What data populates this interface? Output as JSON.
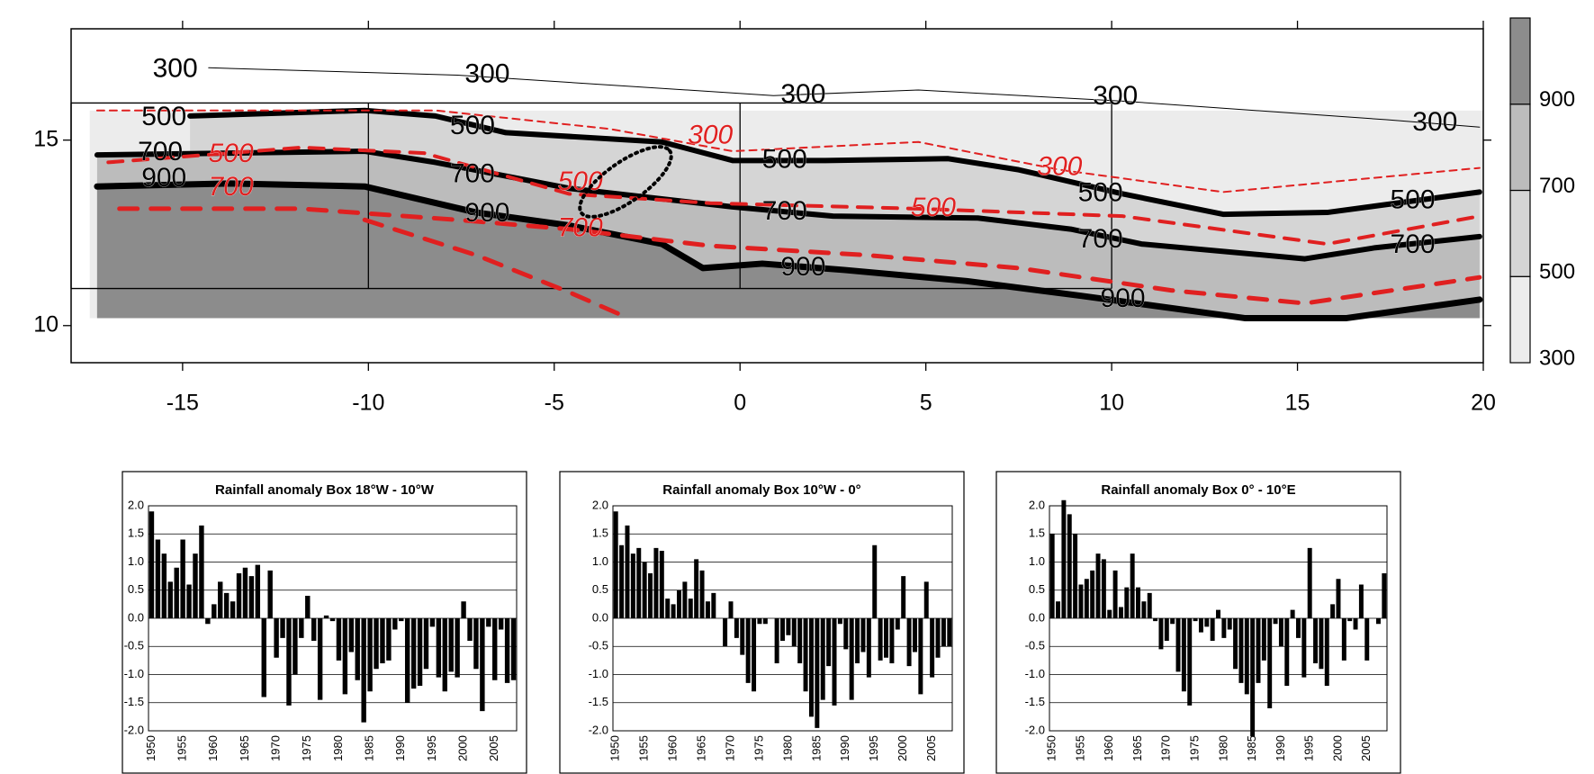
{
  "chart_data": [
    {
      "type": "contour-map",
      "xlim": [
        -18,
        20
      ],
      "ylim": [
        9,
        18
      ],
      "xticks": [
        -15,
        -10,
        -5,
        0,
        5,
        10,
        15,
        20
      ],
      "yticks": [
        10,
        15
      ],
      "boxes_lon": [
        -18,
        -10,
        0,
        10
      ],
      "box_lat": [
        11,
        16
      ],
      "colorbar": {
        "clim": [
          300,
          1100
        ],
        "ticks": [
          300,
          500,
          700,
          900
        ],
        "colors": [
          "#ececec",
          "#d5d5d5",
          "#bcbcbc",
          "#8c8c8c"
        ]
      },
      "shading": {
        "xlim": [
          -17.5,
          20
        ],
        "ylim": [
          10.2,
          15.8
        ]
      },
      "contours": [
        {
          "color": "#000000",
          "style": "solid",
          "width": 1,
          "x": [
            -14.3,
            -7.6,
            0.9,
            4.8,
            10.3,
            17.4,
            19.9
          ],
          "y": [
            16.95,
            16.75,
            16.2,
            16.35,
            16.05,
            15.55,
            15.35
          ]
        },
        {
          "color": "#000000",
          "style": "solid",
          "width": 6,
          "x": [
            -14.8,
            -10.1,
            -8.2,
            -6.3,
            -2.1,
            -0.2,
            2.3,
            5.6,
            7.5,
            10.3,
            13.0,
            15.8,
            19.9
          ],
          "y": [
            15.65,
            15.8,
            15.65,
            15.2,
            14.95,
            14.45,
            14.45,
            14.5,
            14.2,
            13.55,
            13.0,
            13.05,
            13.6
          ]
        },
        {
          "color": "#000000",
          "style": "solid",
          "width": 6,
          "x": [
            -17.3,
            -10.1,
            -8.2,
            -4.6,
            -0.2,
            2.5,
            6.4,
            8.9,
            10.8,
            15.2,
            17.1,
            19.9
          ],
          "y": [
            14.6,
            14.7,
            14.4,
            13.7,
            13.2,
            12.95,
            12.9,
            12.6,
            12.2,
            11.8,
            12.1,
            12.4
          ]
        },
        {
          "color": "#000000",
          "style": "solid",
          "width": 7,
          "x": [
            -17.3,
            -13.7,
            -10.1,
            -7.1,
            -4.6,
            -2.1,
            -1.0,
            0.6,
            2.8,
            6.1,
            9.2,
            13.6,
            16.3,
            19.9
          ],
          "y": [
            13.75,
            13.83,
            13.75,
            13.05,
            12.7,
            12.2,
            11.55,
            11.67,
            11.5,
            11.2,
            10.8,
            10.2,
            10.2,
            10.7
          ]
        },
        {
          "color": "#e02020",
          "style": "dashed",
          "width": 2,
          "x": [
            -17.3,
            -8.2,
            -3.5,
            -0.2,
            4.8,
            8.6,
            13.0,
            19.9
          ],
          "y": [
            15.8,
            15.8,
            15.3,
            14.7,
            14.95,
            14.2,
            13.6,
            14.25
          ]
        },
        {
          "color": "#e02020",
          "style": "dashed",
          "width": 4,
          "x": [
            -17.0,
            -11.8,
            -8.5,
            -4.6,
            -0.8,
            4.8,
            10.3,
            15.8,
            19.9
          ],
          "y": [
            14.4,
            14.8,
            14.65,
            13.55,
            13.3,
            13.15,
            12.95,
            12.2,
            12.95
          ]
        },
        {
          "color": "#e02020",
          "style": "dashed",
          "width": 5,
          "x": [
            -16.7,
            -11.8,
            -7.6,
            -4.6,
            -0.8,
            3.4,
            7.5,
            11.6,
            15.2,
            19.9
          ],
          "y": [
            13.15,
            13.15,
            12.85,
            12.6,
            12.15,
            11.9,
            11.55,
            10.95,
            10.6,
            11.3
          ]
        },
        {
          "color": "#e02020",
          "style": "dashed",
          "width": 5,
          "x": [
            -10.1,
            -7.1,
            -4.6,
            -3.0
          ],
          "y": [
            12.85,
            11.9,
            10.9,
            10.2
          ]
        }
      ],
      "annotations": [
        {
          "text": "300",
          "x": -15.2,
          "y": 16.9,
          "color": "#000000"
        },
        {
          "text": "300",
          "x": -6.8,
          "y": 16.75,
          "color": "#000000"
        },
        {
          "text": "300",
          "x": 1.7,
          "y": 16.2,
          "color": "#000000"
        },
        {
          "text": "300",
          "x": 10.1,
          "y": 16.15,
          "color": "#000000"
        },
        {
          "text": "300",
          "x": 18.7,
          "y": 15.45,
          "color": "#000000"
        },
        {
          "text": "500",
          "x": -15.5,
          "y": 15.6,
          "color": "#000000"
        },
        {
          "text": "500",
          "x": -7.2,
          "y": 15.35,
          "color": "#000000"
        },
        {
          "text": "500",
          "x": 1.2,
          "y": 14.45,
          "color": "#000000"
        },
        {
          "text": "500",
          "x": 9.7,
          "y": 13.55,
          "color": "#000000"
        },
        {
          "text": "500",
          "x": 18.1,
          "y": 13.35,
          "color": "#000000"
        },
        {
          "text": "700",
          "x": -15.6,
          "y": 14.65,
          "color": "#000000"
        },
        {
          "text": "700",
          "x": -7.2,
          "y": 14.05,
          "color": "#000000"
        },
        {
          "text": "700",
          "x": 1.2,
          "y": 13.05,
          "color": "#000000"
        },
        {
          "text": "700",
          "x": 9.7,
          "y": 12.3,
          "color": "#000000"
        },
        {
          "text": "700",
          "x": 18.1,
          "y": 12.15,
          "color": "#000000"
        },
        {
          "text": "900",
          "x": -15.5,
          "y": 13.95,
          "color": "#000000"
        },
        {
          "text": "900",
          "x": -6.8,
          "y": 13.0,
          "color": "#000000"
        },
        {
          "text": "900",
          "x": 1.7,
          "y": 11.55,
          "color": "#000000"
        },
        {
          "text": "900",
          "x": 10.3,
          "y": 10.7,
          "color": "#000000"
        },
        {
          "text": "500",
          "x": -13.7,
          "y": 14.6,
          "color": "#e02020"
        },
        {
          "text": "700",
          "x": -13.7,
          "y": 13.7,
          "color": "#e02020"
        },
        {
          "text": "300",
          "x": -0.8,
          "y": 15.1,
          "color": "#e02020"
        },
        {
          "text": "500",
          "x": -4.3,
          "y": 13.85,
          "color": "#e02020"
        },
        {
          "text": "700",
          "x": -4.3,
          "y": 12.6,
          "color": "#e02020"
        },
        {
          "text": "300",
          "x": 8.6,
          "y": 14.25,
          "color": "#e02020"
        },
        {
          "text": "500",
          "x": 5.2,
          "y": 13.15,
          "color": "#e02020"
        }
      ]
    },
    {
      "type": "bar",
      "title": "Rainfall anomaly Box 18°W - 10°W",
      "color": "#000000",
      "grid": true,
      "x": [
        1950,
        1951,
        1952,
        1953,
        1954,
        1955,
        1956,
        1957,
        1958,
        1959,
        1960,
        1961,
        1962,
        1963,
        1964,
        1965,
        1966,
        1967,
        1968,
        1969,
        1970,
        1971,
        1972,
        1973,
        1974,
        1975,
        1976,
        1977,
        1978,
        1979,
        1980,
        1981,
        1982,
        1983,
        1984,
        1985,
        1986,
        1987,
        1988,
        1989,
        1990,
        1991,
        1992,
        1993,
        1994,
        1995,
        1996,
        1997,
        1998,
        1999,
        2000,
        2001,
        2002,
        2003,
        2004,
        2005,
        2006,
        2007,
        2008
      ],
      "values": [
        1.9,
        1.4,
        1.15,
        0.65,
        0.9,
        1.4,
        0.6,
        1.15,
        1.65,
        -0.1,
        0.25,
        0.65,
        0.45,
        0.3,
        0.8,
        0.9,
        0.75,
        0.95,
        -1.4,
        0.85,
        -0.7,
        -0.35,
        -1.55,
        -1.0,
        -0.35,
        0.4,
        -0.4,
        -1.45,
        0.05,
        -0.05,
        -0.75,
        -1.35,
        -0.6,
        -1.1,
        -1.85,
        -1.3,
        -0.9,
        -0.8,
        -0.75,
        -0.2,
        -0.05,
        -1.5,
        -1.25,
        -1.2,
        -0.9,
        -0.15,
        -1.05,
        -1.3,
        -0.95,
        -1.05,
        0.3,
        -0.4,
        -0.9,
        -1.65,
        -0.15,
        -1.1,
        -0.2,
        -1.15,
        -1.1
      ],
      "xlim": [
        1949.5,
        2008.5
      ],
      "xticks": [
        1950,
        1955,
        1960,
        1965,
        1970,
        1975,
        1980,
        1985,
        1990,
        1995,
        2000,
        2005
      ],
      "ylim": [
        -2,
        2
      ],
      "yticks": [
        {
          "value": 2,
          "label": "2.0"
        },
        1.5,
        {
          "value": 1,
          "label": "1.0"
        },
        0.5,
        {
          "value": 0,
          "label": "0.0"
        },
        -0.5,
        {
          "value": -1,
          "label": "-1.0"
        },
        -1.5,
        {
          "value": -2,
          "label": "-2.0"
        }
      ]
    },
    {
      "type": "bar",
      "title": "Rainfall anomaly Box 10°W - 0°",
      "color": "#000000",
      "grid": true,
      "x": [
        1950,
        1951,
        1952,
        1953,
        1954,
        1955,
        1956,
        1957,
        1958,
        1959,
        1960,
        1961,
        1962,
        1963,
        1964,
        1965,
        1966,
        1967,
        1968,
        1969,
        1970,
        1971,
        1972,
        1973,
        1974,
        1975,
        1976,
        1977,
        1978,
        1979,
        1980,
        1981,
        1982,
        1983,
        1984,
        1985,
        1986,
        1987,
        1988,
        1989,
        1990,
        1991,
        1992,
        1993,
        1994,
        1995,
        1996,
        1997,
        1998,
        1999,
        2000,
        2001,
        2002,
        2003,
        2004,
        2005,
        2006,
        2007,
        2008
      ],
      "values": [
        1.9,
        1.3,
        1.65,
        1.15,
        1.25,
        1.0,
        0.8,
        1.25,
        1.2,
        0.35,
        0.25,
        0.5,
        0.65,
        0.35,
        1.05,
        0.85,
        0.3,
        0.45,
        0.0,
        -0.5,
        0.3,
        -0.35,
        -0.65,
        -1.15,
        -1.3,
        -0.1,
        -0.1,
        0.0,
        -0.8,
        -0.4,
        -0.3,
        -0.5,
        -0.8,
        -1.3,
        -1.75,
        -1.95,
        -1.45,
        -0.85,
        -1.55,
        -0.1,
        -0.55,
        -1.45,
        -0.8,
        -0.6,
        -1.05,
        1.3,
        -0.75,
        -0.7,
        -0.8,
        -0.2,
        0.75,
        -0.85,
        -0.6,
        -1.35,
        0.65,
        -1.05,
        -0.7,
        -0.5,
        -0.5
      ],
      "xlim": [
        1949.5,
        2008.5
      ],
      "xticks": [
        1950,
        1955,
        1960,
        1965,
        1970,
        1975,
        1980,
        1985,
        1990,
        1995,
        2000,
        2005
      ],
      "ylim": [
        -2,
        2
      ],
      "yticks": [
        {
          "value": 2,
          "label": "2.0"
        },
        1.5,
        {
          "value": 1,
          "label": "1.0"
        },
        0.5,
        {
          "value": 0,
          "label": "0.0"
        },
        -0.5,
        {
          "value": -1,
          "label": "-1.0"
        },
        -1.5,
        {
          "value": -2,
          "label": "-2.0"
        }
      ]
    },
    {
      "type": "bar",
      "title": "Rainfall anomaly Box 0° - 10°E",
      "color": "#000000",
      "grid": true,
      "x": [
        1950,
        1951,
        1952,
        1953,
        1954,
        1955,
        1956,
        1957,
        1958,
        1959,
        1960,
        1961,
        1962,
        1963,
        1964,
        1965,
        1966,
        1967,
        1968,
        1969,
        1970,
        1971,
        1972,
        1973,
        1974,
        1975,
        1976,
        1977,
        1978,
        1979,
        1980,
        1981,
        1982,
        1983,
        1984,
        1985,
        1986,
        1987,
        1988,
        1989,
        1990,
        1991,
        1992,
        1993,
        1994,
        1995,
        1996,
        1997,
        1998,
        1999,
        2000,
        2001,
        2002,
        2003,
        2004,
        2005,
        2006,
        2007,
        2008
      ],
      "values": [
        1.5,
        0.3,
        2.1,
        1.85,
        1.5,
        0.6,
        0.7,
        0.85,
        1.15,
        1.05,
        0.15,
        0.85,
        0.2,
        0.55,
        1.15,
        0.55,
        0.3,
        0.45,
        -0.05,
        -0.55,
        -0.4,
        -0.1,
        -0.95,
        -1.3,
        -1.55,
        -0.05,
        -0.25,
        -0.15,
        -0.4,
        0.15,
        -0.35,
        -0.2,
        -0.9,
        -1.15,
        -1.35,
        -2.1,
        -1.15,
        -0.75,
        -1.6,
        -0.1,
        -0.5,
        -1.2,
        0.15,
        -0.35,
        -1.05,
        1.25,
        -0.8,
        -0.9,
        -1.2,
        0.25,
        0.7,
        -0.75,
        -0.05,
        -0.2,
        0.6,
        -0.75,
        0.0,
        -0.1,
        0.8
      ],
      "xlim": [
        1949.5,
        2008.5
      ],
      "xticks": [
        1950,
        1955,
        1960,
        1965,
        1970,
        1975,
        1980,
        1985,
        1990,
        1995,
        2000,
        2005
      ],
      "ylim": [
        -2,
        2
      ],
      "yticks": [
        {
          "value": 2,
          "label": "2.0"
        },
        1.5,
        {
          "value": 1,
          "label": "1.0"
        },
        0.5,
        {
          "value": 0,
          "label": "0.0"
        },
        -0.5,
        {
          "value": -1,
          "label": "-1.0"
        },
        -1.5,
        {
          "value": -2,
          "label": "-2.0"
        }
      ]
    }
  ]
}
